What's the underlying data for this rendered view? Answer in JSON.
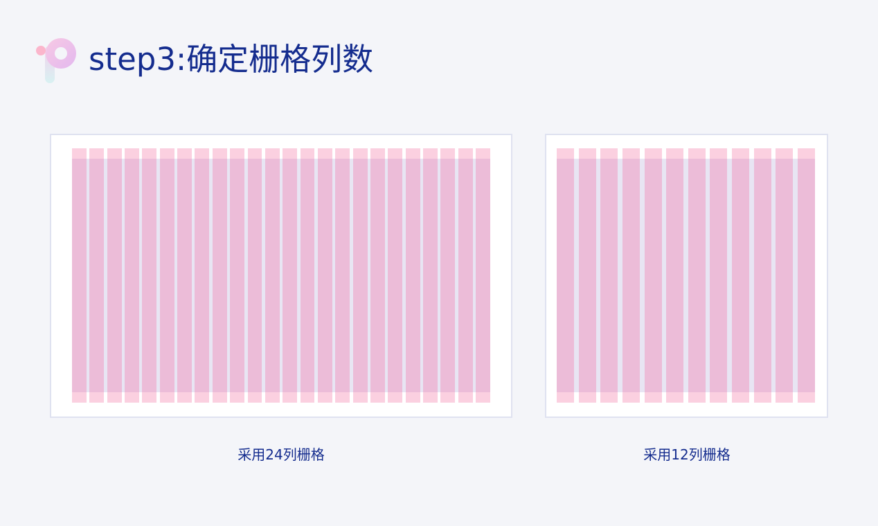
{
  "header": {
    "title": "step3:确定栅格列数",
    "logo_icon": "p-letter-logo-icon"
  },
  "diagrams": [
    {
      "columns": 24,
      "caption": "采用24列栅格"
    },
    {
      "columns": 12,
      "caption": "采用12列栅格"
    }
  ],
  "colors": {
    "background": "#f4f5f9",
    "title": "#142c8e",
    "column_outer": "#fbd0e0",
    "column_inner": "#ecbcd8",
    "gutter_band": "#d6d0ea"
  }
}
